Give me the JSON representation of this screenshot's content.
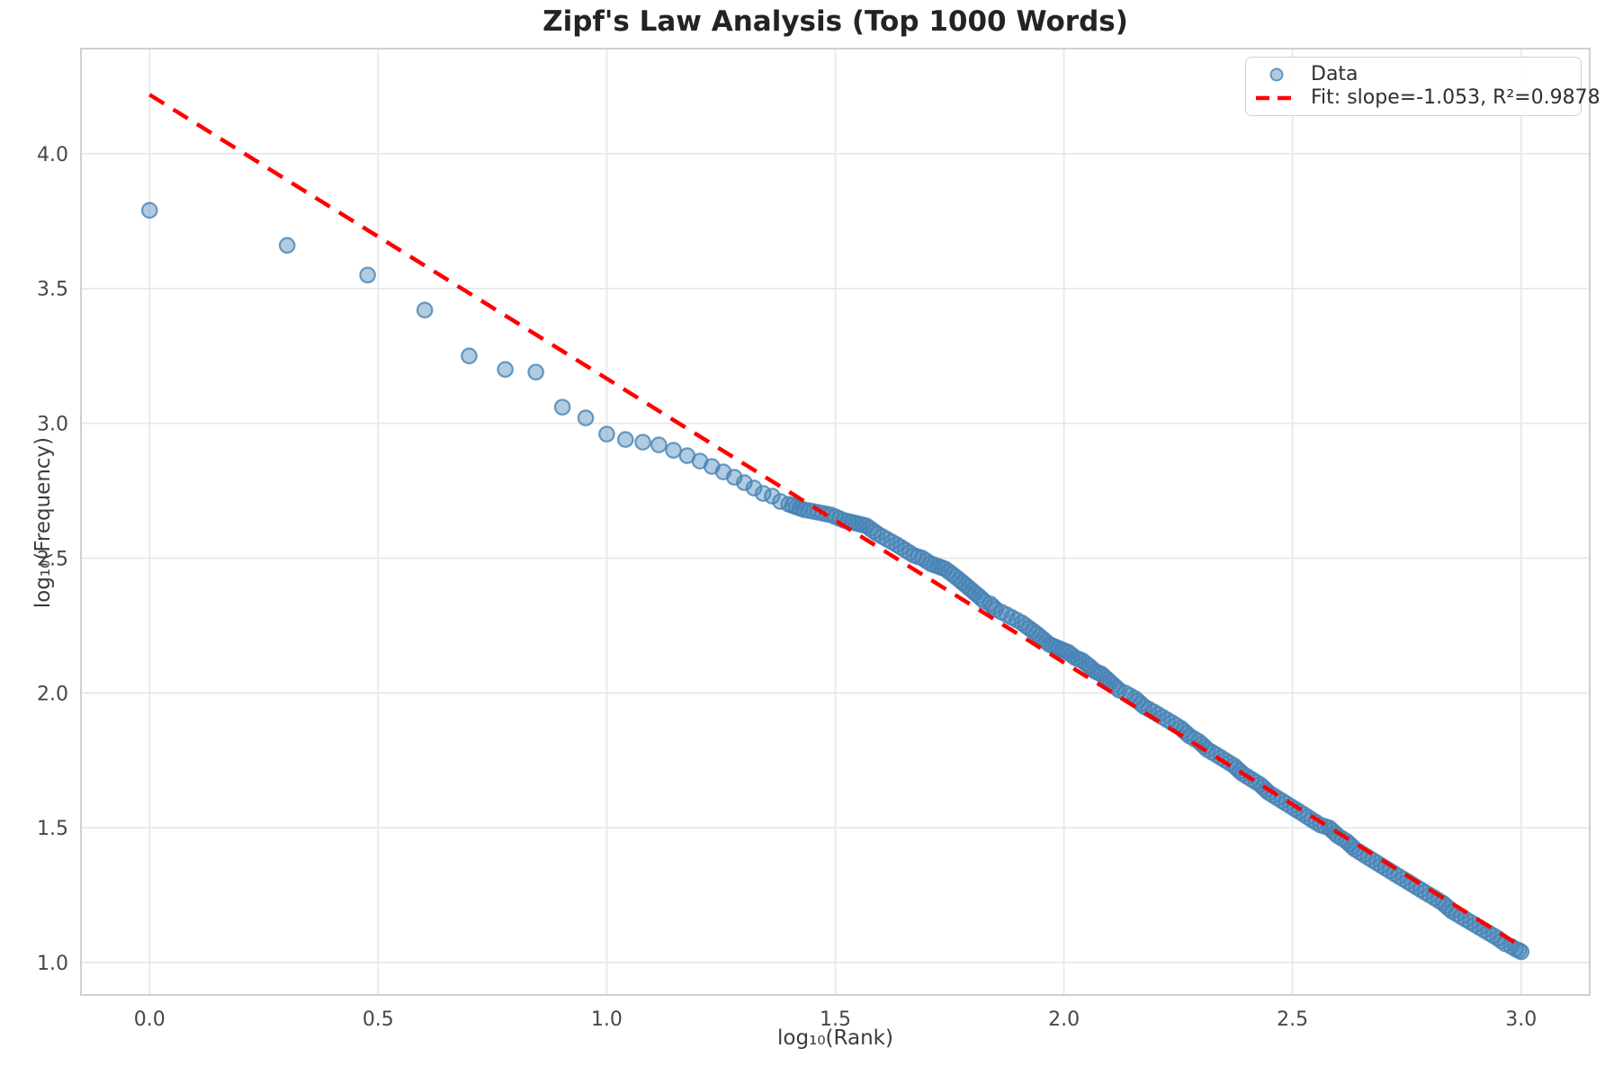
{
  "chart_data": {
    "type": "scatter",
    "title": "Zipf's Law Analysis (Top 1000 Words)",
    "xlabel": "log₁₀(Rank)",
    "ylabel": "log₁₀(Frequency)",
    "grid": true,
    "xlim": [
      -0.15,
      3.15
    ],
    "ylim": [
      0.88,
      4.39
    ],
    "x_ticks": [
      0.0,
      0.5,
      1.0,
      1.5,
      2.0,
      2.5,
      3.0
    ],
    "y_ticks": [
      1.0,
      1.5,
      2.0,
      2.5,
      3.0,
      3.5,
      4.0
    ],
    "n_points_depicted": 1000,
    "legend": {
      "position": "upper right",
      "items": [
        {
          "label": "Data",
          "marker": "scatter-dot"
        },
        {
          "label": "Fit: slope=-1.053, R²=0.9878",
          "marker": "red-dashed-line"
        }
      ]
    },
    "series": [
      {
        "name": "Data",
        "type": "scatter",
        "fill_color": "rgba(70,130,180,0.42)",
        "edge_color": "rgba(70,130,180,0.80)",
        "points": [
          [
            0.0,
            3.79
          ],
          [
            0.301,
            3.66
          ],
          [
            0.477,
            3.55
          ],
          [
            0.602,
            3.42
          ],
          [
            0.699,
            3.25
          ],
          [
            0.778,
            3.2
          ],
          [
            0.845,
            3.19
          ],
          [
            0.903,
            3.06
          ],
          [
            0.954,
            3.02
          ],
          [
            1.0,
            2.96
          ],
          [
            1.041,
            2.94
          ],
          [
            1.079,
            2.93
          ],
          [
            1.114,
            2.92
          ],
          [
            1.146,
            2.9
          ],
          [
            1.176,
            2.88
          ],
          [
            1.204,
            2.86
          ],
          [
            1.23,
            2.84
          ],
          [
            1.255,
            2.82
          ],
          [
            1.279,
            2.8
          ],
          [
            1.301,
            2.78
          ],
          [
            1.322,
            2.76
          ],
          [
            1.342,
            2.74
          ],
          [
            1.362,
            2.73
          ],
          [
            1.38,
            2.71
          ],
          [
            1.398,
            2.7
          ],
          [
            1.431,
            2.68
          ],
          [
            1.462,
            2.67
          ],
          [
            1.491,
            2.66
          ],
          [
            1.519,
            2.64
          ],
          [
            1.544,
            2.63
          ],
          [
            1.568,
            2.62
          ],
          [
            1.592,
            2.59
          ],
          [
            1.613,
            2.57
          ],
          [
            1.634,
            2.55
          ],
          [
            1.653,
            2.53
          ],
          [
            1.672,
            2.51
          ],
          [
            1.69,
            2.5
          ],
          [
            1.708,
            2.48
          ],
          [
            1.724,
            2.47
          ],
          [
            1.74,
            2.46
          ],
          [
            1.756,
            2.44
          ],
          [
            1.771,
            2.42
          ],
          [
            1.785,
            2.4
          ],
          [
            1.799,
            2.38
          ],
          [
            1.813,
            2.36
          ],
          [
            1.826,
            2.34
          ],
          [
            1.839,
            2.33
          ],
          [
            1.851,
            2.31
          ],
          [
            1.863,
            2.3
          ],
          [
            1.875,
            2.29
          ],
          [
            1.886,
            2.28
          ],
          [
            1.897,
            2.27
          ],
          [
            1.908,
            2.26
          ],
          [
            1.924,
            2.24
          ],
          [
            1.94,
            2.22
          ],
          [
            1.954,
            2.2
          ],
          [
            1.968,
            2.18
          ],
          [
            1.982,
            2.17
          ],
          [
            1.996,
            2.16
          ],
          [
            2.01,
            2.15
          ],
          [
            2.025,
            2.13
          ],
          [
            2.04,
            2.12
          ],
          [
            2.055,
            2.1
          ],
          [
            2.068,
            2.08
          ],
          [
            2.082,
            2.07
          ],
          [
            2.095,
            2.05
          ],
          [
            2.108,
            2.03
          ],
          [
            2.121,
            2.01
          ],
          [
            2.134,
            2.0
          ],
          [
            2.155,
            1.98
          ],
          [
            2.175,
            1.95
          ],
          [
            2.196,
            1.93
          ],
          [
            2.216,
            1.91
          ],
          [
            2.236,
            1.89
          ],
          [
            2.255,
            1.87
          ],
          [
            2.275,
            1.84
          ],
          [
            2.295,
            1.82
          ],
          [
            2.314,
            1.79
          ],
          [
            2.334,
            1.77
          ],
          [
            2.353,
            1.75
          ],
          [
            2.372,
            1.73
          ],
          [
            2.391,
            1.7
          ],
          [
            2.41,
            1.68
          ],
          [
            2.429,
            1.66
          ],
          [
            2.448,
            1.63
          ],
          [
            2.467,
            1.61
          ],
          [
            2.486,
            1.59
          ],
          [
            2.505,
            1.57
          ],
          [
            2.524,
            1.55
          ],
          [
            2.542,
            1.53
          ],
          [
            2.561,
            1.51
          ],
          [
            2.58,
            1.5
          ],
          [
            2.599,
            1.47
          ],
          [
            2.618,
            1.45
          ],
          [
            2.637,
            1.42
          ],
          [
            2.656,
            1.4
          ],
          [
            2.675,
            1.38
          ],
          [
            2.694,
            1.36
          ],
          [
            2.713,
            1.34
          ],
          [
            2.732,
            1.32
          ],
          [
            2.752,
            1.3
          ],
          [
            2.771,
            1.28
          ],
          [
            2.79,
            1.26
          ],
          [
            2.81,
            1.24
          ],
          [
            2.829,
            1.22
          ],
          [
            2.849,
            1.19
          ],
          [
            2.869,
            1.17
          ],
          [
            2.889,
            1.15
          ],
          [
            2.909,
            1.13
          ],
          [
            2.929,
            1.11
          ],
          [
            2.949,
            1.09
          ],
          [
            2.965,
            1.07
          ],
          [
            2.978,
            1.06
          ],
          [
            2.988,
            1.05
          ],
          [
            2.995,
            1.045
          ],
          [
            3.0,
            1.04
          ]
        ]
      },
      {
        "name": "Fit",
        "type": "line",
        "style": "dashed",
        "color": "#ff0000",
        "slope": -1.053,
        "intercept": 4.219,
        "r_squared": 0.9878,
        "endpoints": [
          [
            0.0,
            4.219
          ],
          [
            3.0,
            1.06
          ]
        ]
      }
    ],
    "style": {
      "grid_color": "#e8e8e8",
      "spine_color": "#d0d0d0",
      "tick_text_color": "#474747",
      "background": "#ffffff"
    }
  }
}
